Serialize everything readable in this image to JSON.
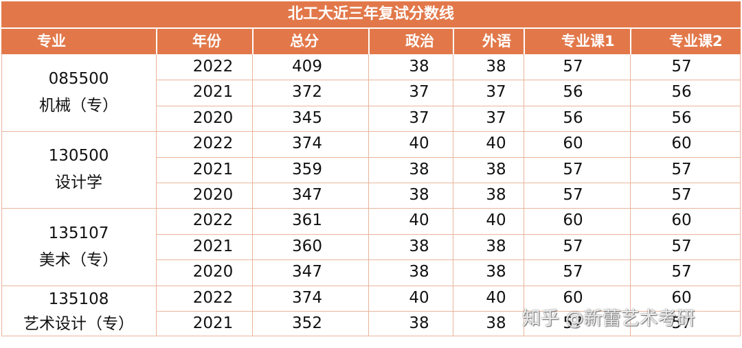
{
  "title": "北工大近三年复试分数线",
  "headers": [
    "专业",
    "年份",
    "总分",
    "政治",
    "外语",
    "专业课1",
    "专业课2"
  ],
  "groups": [
    {
      "code": "085500",
      "name": "机械（专）",
      "rows": [
        {
          "year": "2022",
          "total": "409",
          "politics": "38",
          "foreign": "38",
          "course1": "57",
          "course2": "57"
        },
        {
          "year": "2021",
          "total": "372",
          "politics": "37",
          "foreign": "37",
          "course1": "56",
          "course2": "56"
        },
        {
          "year": "2020",
          "total": "345",
          "politics": "37",
          "foreign": "37",
          "course1": "56",
          "course2": "56"
        }
      ]
    },
    {
      "code": "130500",
      "name": "设计学",
      "rows": [
        {
          "year": "2022",
          "total": "374",
          "politics": "40",
          "foreign": "40",
          "course1": "60",
          "course2": "60"
        },
        {
          "year": "2021",
          "total": "359",
          "politics": "38",
          "foreign": "38",
          "course1": "57",
          "course2": "57"
        },
        {
          "year": "2020",
          "total": "347",
          "politics": "38",
          "foreign": "38",
          "course1": "57",
          "course2": "57"
        }
      ]
    },
    {
      "code": "135107",
      "name": "美术（专）",
      "rows": [
        {
          "year": "2022",
          "total": "361",
          "politics": "40",
          "foreign": "40",
          "course1": "60",
          "course2": "60"
        },
        {
          "year": "2021",
          "total": "360",
          "politics": "38",
          "foreign": "38",
          "course1": "57",
          "course2": "57"
        },
        {
          "year": "2020",
          "total": "347",
          "politics": "38",
          "foreign": "38",
          "course1": "57",
          "course2": "57"
        }
      ]
    },
    {
      "code": "135108",
      "name": "艺术设计（专）",
      "rows": [
        {
          "year": "2022",
          "total": "374",
          "politics": "40",
          "foreign": "40",
          "course1": "60",
          "course2": "60"
        },
        {
          "year": "2021",
          "total": "352",
          "politics": "38",
          "foreign": "38",
          "course1": "57",
          "course2": "57"
        }
      ]
    }
  ],
  "watermark": "知乎 @新蕾艺术考研",
  "colors": {
    "header_bg": "#e2784a",
    "header_text": "#ffffff",
    "grid_line": "#e8b49a"
  }
}
